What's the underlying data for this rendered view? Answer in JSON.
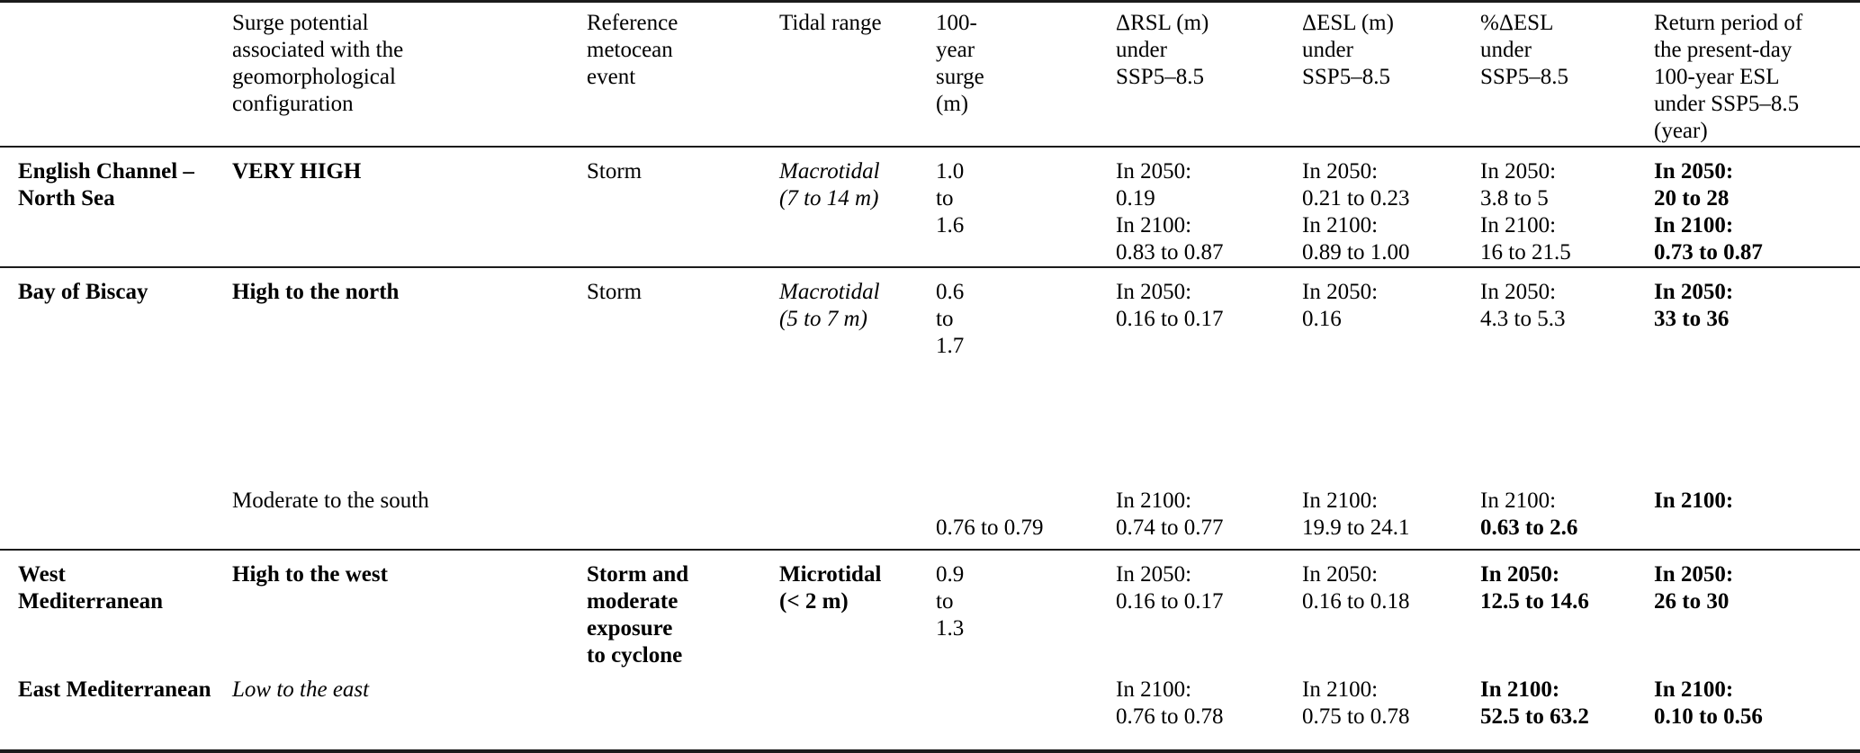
{
  "colors": {
    "background": "#ffffff",
    "text": "#000000",
    "rule": "#1b1b1b"
  },
  "table": {
    "columns": [
      {
        "id": "region",
        "label": ""
      },
      {
        "id": "surge-potential",
        "label": "Surge potential\nassociated with the\ngeomorphological\nconfiguration"
      },
      {
        "id": "metocean-event",
        "label": "Reference\nmetocean\nevent"
      },
      {
        "id": "tidal-range",
        "label": "Tidal range"
      },
      {
        "id": "surge-100yr",
        "label": "100-\nyear\nsurge\n(m)"
      },
      {
        "id": "delta-rsl",
        "label": "ΔRSL (m)\nunder\nSSP5–8.5"
      },
      {
        "id": "delta-esl",
        "label": "ΔESL (m)\nunder\nSSP5–8.5"
      },
      {
        "id": "pct-delta-esl",
        "label": "%ΔESL\nunder\nSSP5–8.5"
      },
      {
        "id": "return-period",
        "label": "Return period of\nthe present-day\n100-year ESL\nunder SSP5–8.5\n(year)"
      }
    ],
    "rows": [
      {
        "id": "english-channel-north-sea",
        "cells": [
          [
            {
              "slot": "a",
              "lines": [
                {
                  "t": "English Channel –\nNorth Sea",
                  "s": "b"
                }
              ]
            }
          ],
          [
            {
              "slot": "a",
              "lines": [
                {
                  "t": "VERY HIGH",
                  "s": "b"
                }
              ]
            }
          ],
          [
            {
              "slot": "a",
              "lines": [
                {
                  "t": "Storm",
                  "s": "r"
                }
              ]
            }
          ],
          [
            {
              "slot": "a",
              "lines": [
                {
                  "t": "Macrotidal\n(7 to 14 m)",
                  "s": "i"
                }
              ]
            }
          ],
          [
            {
              "slot": "a",
              "lines": [
                {
                  "t": "1.0\nto\n1.6",
                  "s": "r"
                }
              ]
            }
          ],
          [
            {
              "slot": "a",
              "lines": [
                {
                  "t": "In 2050:\n0.19\nIn 2100:\n0.83 to 0.87",
                  "s": "r"
                }
              ]
            }
          ],
          [
            {
              "slot": "a",
              "lines": [
                {
                  "t": "In 2050:\n0.21 to 0.23\nIn 2100:\n0.89 to 1.00",
                  "s": "r"
                }
              ]
            }
          ],
          [
            {
              "slot": "a",
              "lines": [
                {
                  "t": "In 2050:\n3.8 to 5\nIn 2100:\n16 to 21.5",
                  "s": "r"
                }
              ]
            }
          ],
          [
            {
              "slot": "a",
              "lines": [
                {
                  "t": "In 2050:\n20 to 28\nIn 2100:\n0.73 to 0.87",
                  "s": "b"
                }
              ]
            }
          ]
        ]
      },
      {
        "id": "bay-of-biscay",
        "cells": [
          [
            {
              "slot": "a",
              "lines": [
                {
                  "t": "Bay of Biscay",
                  "s": "b"
                }
              ]
            }
          ],
          [
            {
              "slot": "a",
              "lines": [
                {
                  "t": "High to the north",
                  "s": "b"
                }
              ]
            },
            {
              "slot": "b",
              "lines": [
                {
                  "t": "Moderate to the south",
                  "s": "r"
                }
              ]
            }
          ],
          [
            {
              "slot": "a",
              "lines": [
                {
                  "t": "Storm",
                  "s": "r"
                }
              ]
            }
          ],
          [
            {
              "slot": "a",
              "lines": [
                {
                  "t": "Macrotidal\n(5 to 7 m)",
                  "s": "i"
                }
              ]
            }
          ],
          [
            {
              "slot": "a",
              "lines": [
                {
                  "t": "0.6\nto\n1.7",
                  "s": "r"
                }
              ]
            },
            {
              "slot": "b2",
              "lines": [
                {
                  "t": "0.76 to 0.79",
                  "s": "r"
                }
              ]
            }
          ],
          [
            {
              "slot": "a",
              "lines": [
                {
                  "t": "In 2050:\n0.16 to 0.17",
                  "s": "r"
                }
              ]
            },
            {
              "slot": "b",
              "lines": [
                {
                  "t": "In 2100:\n0.74 to 0.77",
                  "s": "r"
                }
              ]
            }
          ],
          [
            {
              "slot": "a",
              "lines": [
                {
                  "t": "In 2050:\n0.16",
                  "s": "r"
                }
              ]
            },
            {
              "slot": "b",
              "lines": [
                {
                  "t": "In 2100:\n19.9 to 24.1",
                  "s": "r"
                }
              ]
            }
          ],
          [
            {
              "slot": "a",
              "lines": [
                {
                  "t": "In 2050:\n4.3 to 5.3",
                  "s": "r"
                }
              ]
            },
            {
              "slot": "b",
              "lines": [
                {
                  "t": "In 2100:",
                  "s": "r"
                },
                {
                  "t": "0.63 to 2.6",
                  "s": "b"
                }
              ]
            }
          ],
          [
            {
              "slot": "a",
              "lines": [
                {
                  "t": "In 2050:\n33 to 36",
                  "s": "b"
                }
              ]
            },
            {
              "slot": "b",
              "lines": [
                {
                  "t": "In 2100:",
                  "s": "b"
                }
              ]
            }
          ]
        ]
      },
      {
        "id": "mediterranean",
        "cells": [
          [
            {
              "slot": "a",
              "lines": [
                {
                  "t": "West\nMediterranean",
                  "s": "b"
                }
              ]
            },
            {
              "slot": "b",
              "lines": [
                {
                  "t": "East Mediterranean",
                  "s": "b"
                }
              ]
            }
          ],
          [
            {
              "slot": "a",
              "lines": [
                {
                  "t": "High to the west",
                  "s": "b"
                }
              ]
            },
            {
              "slot": "b",
              "lines": [
                {
                  "t": "Low to the east",
                  "s": "i"
                }
              ]
            }
          ],
          [
            {
              "slot": "a",
              "lines": [
                {
                  "t": "Storm and\nmoderate\nexposure\nto cyclone",
                  "s": "b"
                }
              ]
            }
          ],
          [
            {
              "slot": "a",
              "lines": [
                {
                  "t": "Microtidal\n(< 2 m)",
                  "s": "b"
                }
              ]
            }
          ],
          [
            {
              "slot": "a",
              "lines": [
                {
                  "t": "0.9\nto\n1.3",
                  "s": "r"
                }
              ]
            }
          ],
          [
            {
              "slot": "a",
              "lines": [
                {
                  "t": "In 2050:\n0.16 to 0.17",
                  "s": "r"
                }
              ]
            },
            {
              "slot": "b",
              "lines": [
                {
                  "t": "In 2100:\n0.76 to 0.78",
                  "s": "r"
                }
              ]
            }
          ],
          [
            {
              "slot": "a",
              "lines": [
                {
                  "t": "In 2050:\n0.16 to 0.18",
                  "s": "r"
                }
              ]
            },
            {
              "slot": "b",
              "lines": [
                {
                  "t": "In 2100:\n0.75 to 0.78",
                  "s": "r"
                }
              ]
            }
          ],
          [
            {
              "slot": "a",
              "lines": [
                {
                  "t": "In 2050:\n12.5 to 14.6",
                  "s": "b"
                }
              ]
            },
            {
              "slot": "b",
              "lines": [
                {
                  "t": "In 2100:\n52.5 to 63.2",
                  "s": "b"
                }
              ]
            }
          ],
          [
            {
              "slot": "a",
              "lines": [
                {
                  "t": "In 2050:\n26 to 30",
                  "s": "b"
                }
              ]
            },
            {
              "slot": "b",
              "lines": [
                {
                  "t": "In 2100:\n0.10 to 0.56",
                  "s": "b"
                }
              ]
            }
          ]
        ]
      }
    ]
  }
}
